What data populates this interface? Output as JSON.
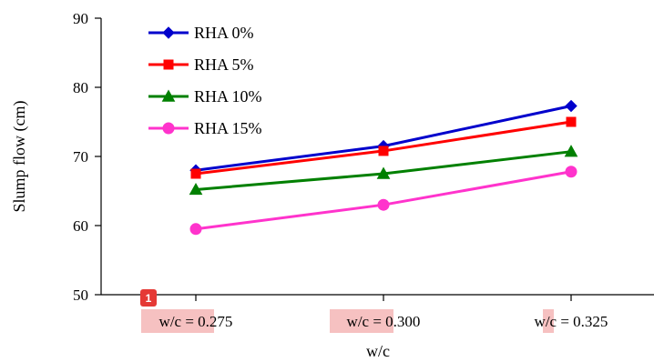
{
  "chart_data": {
    "type": "line",
    "categories": [
      "w/c = 0.275",
      "w/c = 0.300",
      "w/c = 0.325"
    ],
    "series": [
      {
        "name": "RHA 0%",
        "color": "#0000cc",
        "marker": "diamond",
        "values": [
          68.0,
          71.5,
          77.3
        ]
      },
      {
        "name": "RHA 5%",
        "color": "#ff0000",
        "marker": "square",
        "values": [
          67.5,
          70.8,
          75.0
        ]
      },
      {
        "name": "RHA 10%",
        "color": "#008000",
        "marker": "triangle",
        "values": [
          65.2,
          67.5,
          70.7
        ]
      },
      {
        "name": "RHA 15%",
        "color": "#ff33cc",
        "marker": "circle",
        "values": [
          59.5,
          63.0,
          67.8
        ]
      }
    ],
    "ylabel": "Slump flow (cm)",
    "xlabel": "w/c",
    "ylim": [
      50,
      90
    ],
    "yticks": [
      50,
      60,
      70,
      80,
      90
    ],
    "grid": false,
    "legend_position": "top-left"
  },
  "annotations": {
    "badge_label": "1"
  }
}
